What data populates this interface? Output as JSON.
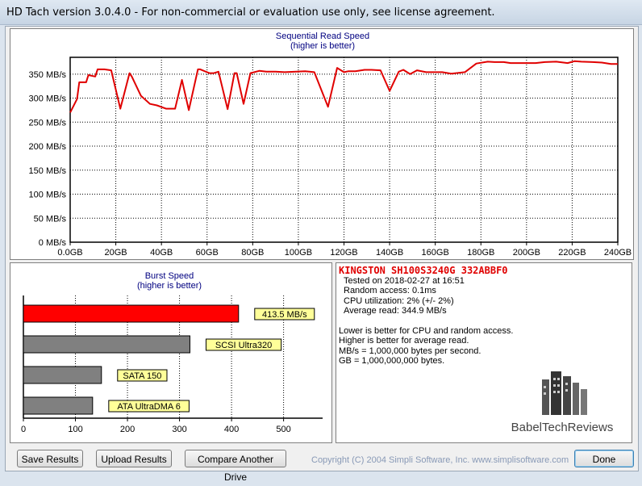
{
  "window": {
    "title": "HD Tach version 3.0.4.0  - For non-commercial or evaluation use only, see license agreement."
  },
  "seq_chart": {
    "title_line1": "Sequential Read Speed",
    "title_line2": "(higher is better)"
  },
  "burst_chart": {
    "title_line1": "Burst Speed",
    "title_line2": "(higher is better)"
  },
  "chart_data": [
    {
      "type": "line",
      "title": "Sequential Read Speed (higher is better)",
      "x_ticks": [
        "0.0GB",
        "20GB",
        "40GB",
        "60GB",
        "80GB",
        "100GB",
        "120GB",
        "140GB",
        "160GB",
        "180GB",
        "200GB",
        "220GB",
        "240GB"
      ],
      "y_ticks": [
        "0 MB/s",
        "50 MB/s",
        "100 MB/s",
        "150 MB/s",
        "200 MB/s",
        "250 MB/s",
        "300 MB/s",
        "350 MB/s"
      ],
      "xlim": [
        0,
        240
      ],
      "ylim": [
        0,
        385
      ],
      "grid": true,
      "series": [
        {
          "color": "#e00000",
          "x": [
            0,
            3,
            4,
            7,
            8,
            11,
            12,
            15,
            18,
            22,
            26,
            27,
            31,
            35,
            38,
            42,
            46,
            49,
            52,
            56,
            57,
            61,
            63,
            65,
            69,
            72,
            73,
            76,
            79,
            83,
            86,
            90,
            94,
            99,
            103,
            107,
            113,
            117,
            120,
            122,
            125,
            129,
            132,
            136,
            140,
            144,
            146,
            149,
            152,
            156,
            159,
            163,
            167,
            173,
            178,
            183,
            186,
            190,
            193,
            198,
            204,
            208,
            213,
            218,
            221,
            224,
            229,
            233,
            237,
            240
          ],
          "y": [
            270,
            298,
            333,
            333,
            348,
            345,
            360,
            360,
            358,
            278,
            352,
            345,
            305,
            288,
            285,
            278,
            278,
            338,
            275,
            360,
            360,
            352,
            352,
            355,
            277,
            352,
            352,
            288,
            352,
            357,
            355,
            355,
            354,
            355,
            356,
            354,
            282,
            363,
            354,
            356,
            356,
            359,
            359,
            358,
            315,
            355,
            359,
            350,
            358,
            354,
            354,
            354,
            351,
            354,
            372,
            376,
            375,
            375,
            373,
            373,
            373,
            375,
            376,
            373,
            377,
            376,
            375,
            374,
            371,
            371
          ]
        }
      ]
    },
    {
      "type": "bar",
      "title": "Burst Speed (higher is better)",
      "categories": [
        "413.5 MB/s",
        "SCSI Ultra320",
        "SATA 150",
        "ATA UltraDMA 6"
      ],
      "values": [
        413.5,
        320,
        150,
        133
      ],
      "colors": [
        "#ff0000",
        "#808080",
        "#808080",
        "#808080"
      ],
      "x_ticks": [
        "0",
        "100",
        "200",
        "300",
        "400",
        "500"
      ],
      "xlim": [
        0,
        575
      ]
    }
  ],
  "drive_info": {
    "name": "KINGSTON SH100S3240G 332ABBF0",
    "lines": [
      "Tested on 2018-02-27 at 16:51",
      "Random access: 0.1ms",
      "CPU utilization: 2% (+/- 2%)",
      "Average read: 344.9 MB/s"
    ],
    "notes": [
      "Lower is better for CPU and random access.",
      "Higher is better for average read.",
      "MB/s = 1,000,000 bytes per second.",
      "GB = 1,000,000,000 bytes."
    ],
    "watermark": "BabelTechReviews"
  },
  "buttons": {
    "save": "Save Results",
    "upload": "Upload Results",
    "compare": "Compare Another Drive",
    "done": "Done"
  },
  "footer": {
    "copyright": "Copyright (C) 2004 Simpli Software, Inc. www.simplisoftware.com"
  }
}
